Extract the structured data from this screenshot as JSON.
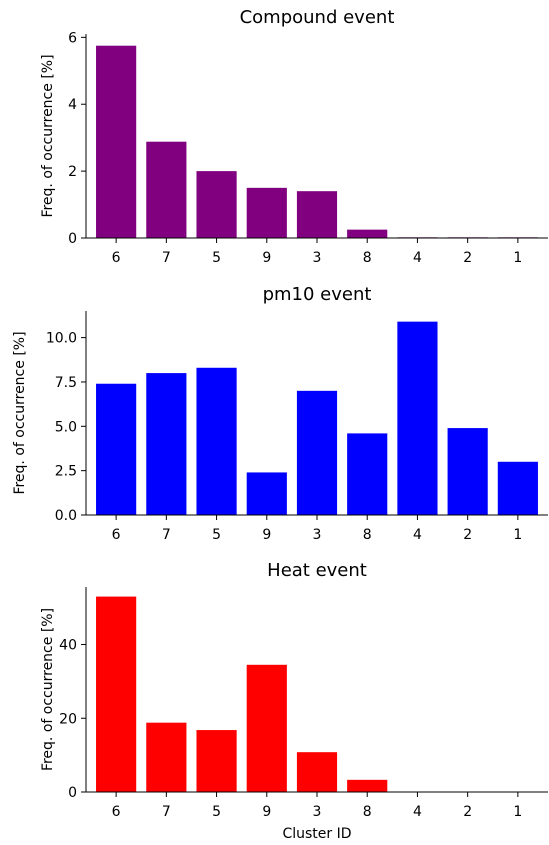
{
  "chart_data": [
    {
      "type": "bar",
      "title": "Compound event",
      "categories": [
        "6",
        "7",
        "5",
        "9",
        "3",
        "8",
        "4",
        "2",
        "1"
      ],
      "values": [
        5.75,
        2.88,
        2.0,
        1.5,
        1.4,
        0.25,
        0.02,
        0.02,
        0.02
      ],
      "color": "#800080",
      "ylabel": "Freq. of occurrence [%]",
      "xlabel": "",
      "ylim": [
        0,
        6.1
      ],
      "yticks": [
        0,
        2,
        4,
        6
      ],
      "ytick_labels": [
        "0",
        "2",
        "4",
        "6"
      ],
      "grid": false
    },
    {
      "type": "bar",
      "title": "pm10 event",
      "categories": [
        "6",
        "7",
        "5",
        "9",
        "3",
        "8",
        "4",
        "2",
        "1"
      ],
      "values": [
        7.4,
        8.0,
        8.3,
        2.4,
        7.0,
        4.6,
        10.9,
        4.9,
        3.0
      ],
      "color": "#0000ff",
      "ylabel": "Freq. of occurrence [%]",
      "xlabel": "",
      "ylim": [
        0,
        11.5
      ],
      "yticks": [
        0,
        2.5,
        5,
        7.5,
        10
      ],
      "ytick_labels": [
        "0.0",
        "2.5",
        "5.0",
        "7.5",
        "10.0"
      ],
      "grid": false
    },
    {
      "type": "bar",
      "title": "Heat event",
      "categories": [
        "6",
        "7",
        "5",
        "9",
        "3",
        "8",
        "4",
        "2",
        "1"
      ],
      "values": [
        53.0,
        18.8,
        16.8,
        34.5,
        10.8,
        3.3,
        0,
        0,
        0
      ],
      "color": "#ff0000",
      "ylabel": "Freq. of occurrence [%]",
      "xlabel": "Cluster ID",
      "ylim": [
        0,
        55.6
      ],
      "yticks": [
        0,
        20,
        40
      ],
      "ytick_labels": [
        "0",
        "20",
        "40"
      ],
      "grid": false
    }
  ]
}
